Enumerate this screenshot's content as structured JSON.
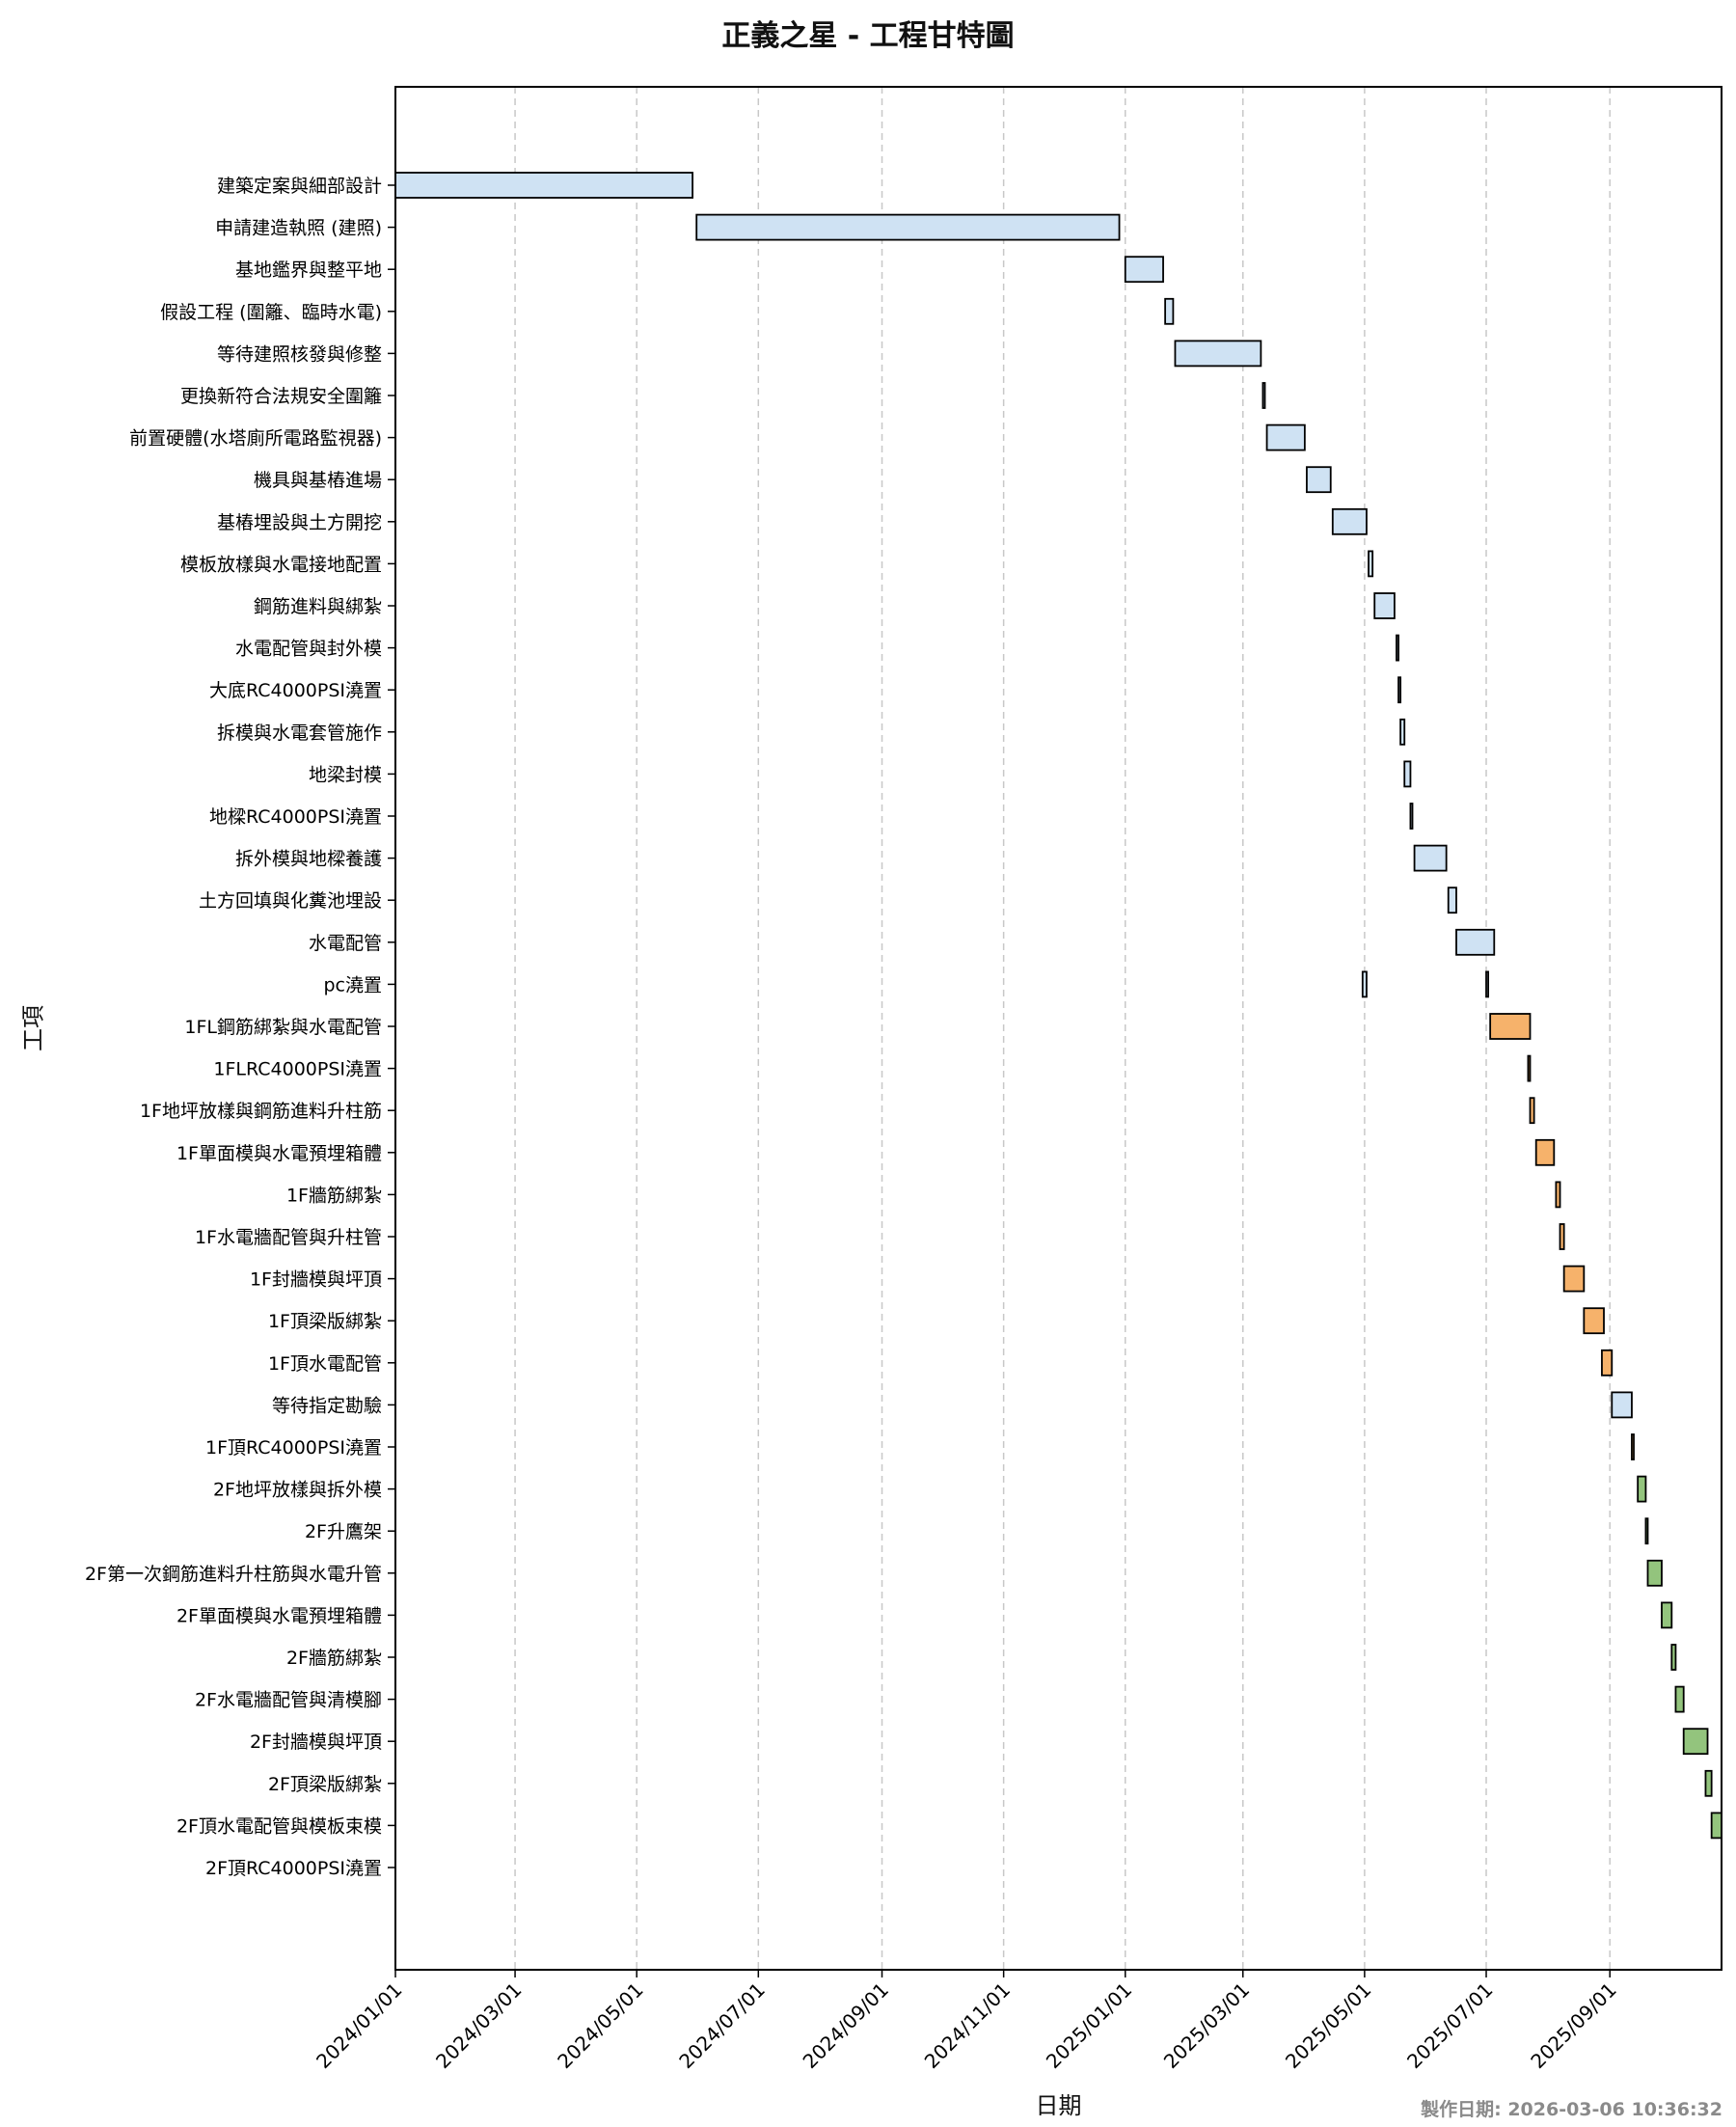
{
  "chart_data": {
    "type": "gantt",
    "title": "正義之星 - 工程甘特圖",
    "xlabel": "日期",
    "ylabel": "工項",
    "footer": "製作日期: 2026-03-06 10:36:32",
    "x_range": [
      "2024-01-01",
      "2025-10-27"
    ],
    "x_ticks": [
      "2024/01/01",
      "2024/03/01",
      "2024/05/01",
      "2024/07/01",
      "2024/09/01",
      "2024/11/01",
      "2025/01/01",
      "2025/03/01",
      "2025/05/01",
      "2025/07/01",
      "2025/09/01"
    ],
    "grid": "x-dashed",
    "colors": {
      "phase_1": "#cfe2f3",
      "phase_2": "#f6b26b",
      "phase_3": "#93c47d",
      "edge": "#000000"
    },
    "tasks": [
      {
        "name": "建築定案與細部設計",
        "start": "2024-01-01",
        "end": "2024-05-29",
        "phase": "phase_1"
      },
      {
        "name": "申請建造執照 (建照)",
        "start": "2024-05-31",
        "end": "2024-12-29",
        "phase": "phase_1"
      },
      {
        "name": "基地鑑界與整平地",
        "start": "2025-01-01",
        "end": "2025-01-20",
        "phase": "phase_1"
      },
      {
        "name": "假設工程 (圍籬、臨時水電)",
        "start": "2025-01-21",
        "end": "2025-01-25",
        "phase": "phase_1"
      },
      {
        "name": "等待建照核發與修整",
        "start": "2025-01-26",
        "end": "2025-03-10",
        "phase": "phase_1"
      },
      {
        "name": "更換新符合法規安全圍籬",
        "start": "2025-03-11",
        "end": "2025-03-12",
        "phase": "phase_1"
      },
      {
        "name": "前置硬體(水塔廁所電路監視器)",
        "start": "2025-03-13",
        "end": "2025-04-01",
        "phase": "phase_1"
      },
      {
        "name": "機具與基樁進場",
        "start": "2025-04-02",
        "end": "2025-04-14",
        "phase": "phase_1"
      },
      {
        "name": "基樁埋設與土方開挖",
        "start": "2025-04-15",
        "end": "2025-05-02",
        "phase": "phase_1"
      },
      {
        "name": "模板放樣與水電接地配置",
        "start": "2025-05-03",
        "end": "2025-05-05",
        "phase": "phase_1"
      },
      {
        "name": "鋼筋進料與綁紮",
        "start": "2025-05-06",
        "end": "2025-05-16",
        "phase": "phase_1"
      },
      {
        "name": "水電配管與封外模",
        "start": "2025-05-17",
        "end": "2025-05-18",
        "phase": "phase_1"
      },
      {
        "name": "大底RC4000PSI澆置",
        "start": "2025-05-18",
        "end": "2025-05-19",
        "phase": "phase_1"
      },
      {
        "name": "拆模與水電套管施作",
        "start": "2025-05-19",
        "end": "2025-05-21",
        "phase": "phase_1"
      },
      {
        "name": "地梁封模",
        "start": "2025-05-21",
        "end": "2025-05-24",
        "phase": "phase_1"
      },
      {
        "name": "地樑RC4000PSI澆置",
        "start": "2025-05-24",
        "end": "2025-05-25",
        "phase": "phase_1"
      },
      {
        "name": "拆外模與地樑養護",
        "start": "2025-05-26",
        "end": "2025-06-11",
        "phase": "phase_1"
      },
      {
        "name": "土方回填與化糞池埋設",
        "start": "2025-06-12",
        "end": "2025-06-16",
        "phase": "phase_1"
      },
      {
        "name": "水電配管",
        "start": "2025-06-16",
        "end": "2025-07-05",
        "phase": "phase_1"
      },
      {
        "name": "pc澆置",
        "start": "2025-04-30",
        "end": "2025-05-02",
        "phase": "phase_1"
      },
      {
        "name": "pc澆置",
        "start": "2025-07-01",
        "end": "2025-07-02",
        "phase": "phase_1"
      },
      {
        "name": "1FL鋼筋綁紮與水電配管",
        "start": "2025-07-03",
        "end": "2025-07-23",
        "phase": "phase_2"
      },
      {
        "name": "1FLRC4000PSI澆置",
        "start": "2025-07-22",
        "end": "2025-07-23",
        "phase": "phase_2"
      },
      {
        "name": "1F地坪放樣與鋼筋進料升柱筋",
        "start": "2025-07-23",
        "end": "2025-07-25",
        "phase": "phase_2"
      },
      {
        "name": "1F單面模與水電預埋箱體",
        "start": "2025-07-26",
        "end": "2025-08-04",
        "phase": "phase_2"
      },
      {
        "name": "1F牆筋綁紮",
        "start": "2025-08-05",
        "end": "2025-08-07",
        "phase": "phase_2"
      },
      {
        "name": "1F水電牆配管與升柱管",
        "start": "2025-08-07",
        "end": "2025-08-09",
        "phase": "phase_2"
      },
      {
        "name": "1F封牆模與坪頂",
        "start": "2025-08-09",
        "end": "2025-08-19",
        "phase": "phase_2"
      },
      {
        "name": "1F頂梁版綁紮",
        "start": "2025-08-19",
        "end": "2025-08-29",
        "phase": "phase_2"
      },
      {
        "name": "1F頂水電配管",
        "start": "2025-08-28",
        "end": "2025-09-02",
        "phase": "phase_2"
      },
      {
        "name": "等待指定勘驗",
        "start": "2025-09-02",
        "end": "2025-09-12",
        "phase": "phase_1"
      },
      {
        "name": "1F頂RC4000PSI澆置",
        "start": "2025-09-12",
        "end": "2025-09-13",
        "phase": "phase_2"
      },
      {
        "name": "2F地坪放樣與拆外模",
        "start": "2025-09-15",
        "end": "2025-09-19",
        "phase": "phase_3"
      },
      {
        "name": "2F升鷹架",
        "start": "2025-09-19",
        "end": "2025-09-20",
        "phase": "phase_3"
      },
      {
        "name": "2F第一次鋼筋進料升柱筋與水電升管",
        "start": "2025-09-20",
        "end": "2025-09-27",
        "phase": "phase_3"
      },
      {
        "name": "2F單面模與水電預埋箱體",
        "start": "2025-09-27",
        "end": "2025-10-02",
        "phase": "phase_3"
      },
      {
        "name": "2F牆筋綁紮",
        "start": "2025-10-02",
        "end": "2025-10-04",
        "phase": "phase_3"
      },
      {
        "name": "2F水電牆配管與清模腳",
        "start": "2025-10-04",
        "end": "2025-10-08",
        "phase": "phase_3"
      },
      {
        "name": "2F封牆模與坪頂",
        "start": "2025-10-08",
        "end": "2025-10-20",
        "phase": "phase_3"
      },
      {
        "name": "2F頂梁版綁紮",
        "start": "2025-10-19",
        "end": "2025-10-22",
        "phase": "phase_3"
      },
      {
        "name": "2F頂水電配管與模板束模",
        "start": "2025-10-22",
        "end": "2025-10-27",
        "phase": "phase_3"
      },
      {
        "name": "2F頂RC4000PSI澆置",
        "start": "",
        "end": "",
        "phase": "phase_3"
      }
    ]
  }
}
